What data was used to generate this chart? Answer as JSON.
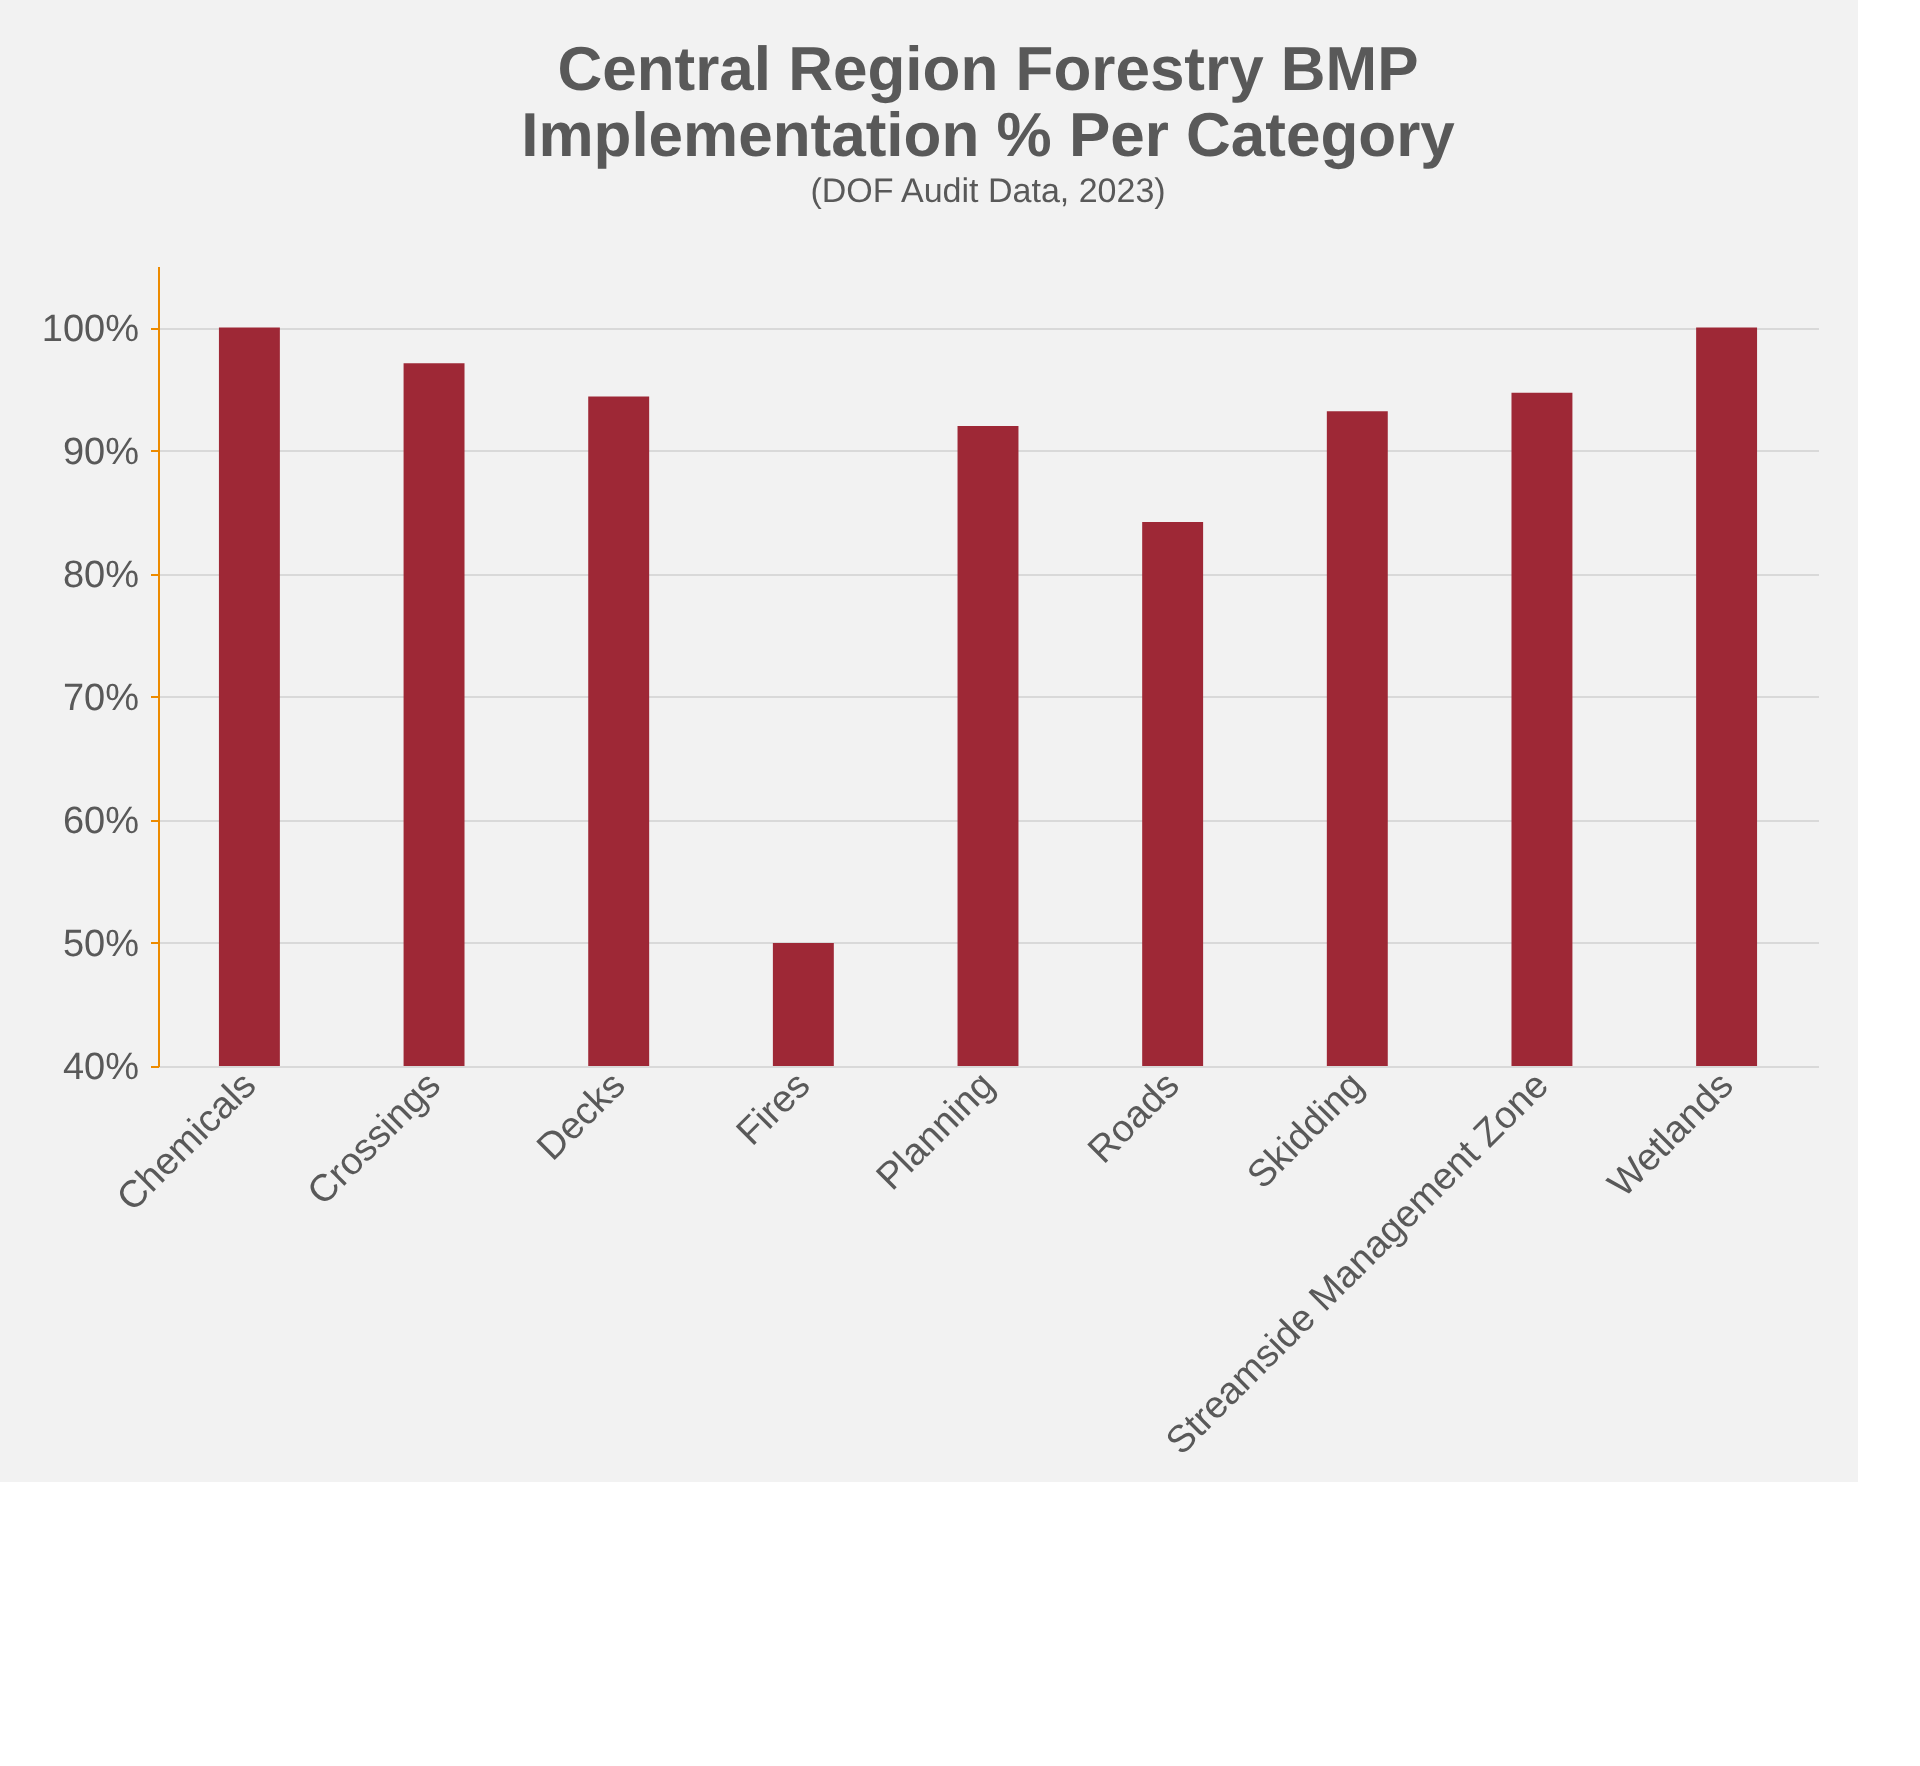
{
  "chart_data": {
    "type": "bar",
    "title": "Central Region Forestry BMP Implementation % Per Category",
    "subtitle": "(DOF Audit Data, 2023)",
    "categories": [
      "Chemicals",
      "Crossings",
      "Decks",
      "Fires",
      "Planning",
      "Roads",
      "Skidding",
      "Streamside Management Zone",
      "Wetlands"
    ],
    "values": [
      100,
      97.1,
      94.4,
      50,
      92.0,
      84.2,
      93.2,
      94.7,
      100
    ],
    "color": "#9e2836",
    "ylim": [
      40,
      105
    ],
    "yticks": [
      {
        "value": 40,
        "label": "40%"
      },
      {
        "value": 50,
        "label": "50%"
      },
      {
        "value": 60,
        "label": "60%"
      },
      {
        "value": 70,
        "label": "70%"
      },
      {
        "value": 80,
        "label": "80%"
      },
      {
        "value": 90,
        "label": "90%"
      },
      {
        "value": 100,
        "label": "100%"
      }
    ],
    "grid": "y"
  }
}
